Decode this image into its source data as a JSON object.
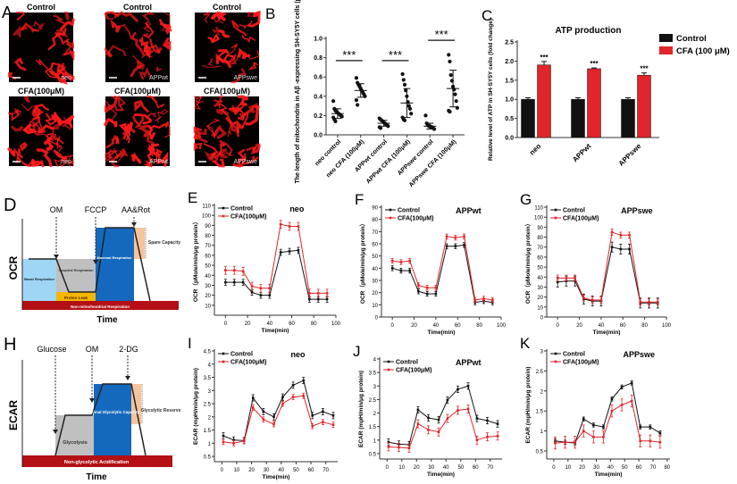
{
  "colors": {
    "control": "#111111",
    "cfa": "#e0262b",
    "basal": "#9fd6f5",
    "coupled": "#c0c0c0",
    "leak": "#f5b800",
    "maximal": "#1469be",
    "spare": "#f6c39a",
    "nonmito": "#b30f14",
    "micro": "#ff1a1a"
  },
  "panel_a": {
    "letter": "A",
    "images": [
      {
        "condition": "Control",
        "cell": "neo"
      },
      {
        "condition": "Control",
        "cell": "APPwt"
      },
      {
        "condition": "Control",
        "cell": "APPswe"
      },
      {
        "condition": "CFA(100μM)",
        "cell": "neo"
      },
      {
        "condition": "CFA(100μM)",
        "cell": "APPwt"
      },
      {
        "condition": "CFA(100μM)",
        "cell": "APPswe"
      }
    ]
  },
  "panel_d": {
    "letter": "D",
    "ylabel": "OCR",
    "xlabel": "Time",
    "injections": [
      "OM",
      "FCCP",
      "AA&Rot"
    ],
    "regions": {
      "basal": "Basal Respiration",
      "coupled": "Coupled Respiration",
      "leak": "Proton Leak",
      "maximal": "Maximal Respiration",
      "spare": "Spare Capacity",
      "nonmito": "Non-mitochondrial Respiration"
    }
  },
  "panel_h": {
    "letter": "H",
    "ylabel": "ECAR",
    "xlabel": "Time",
    "injections": [
      "Glucose",
      "OM",
      "2-DG"
    ],
    "regions": {
      "glycolysis": "Glycolysis",
      "maximal": "Maximal Glycolytic Capacity",
      "reserve": "Glycolytic Reserve",
      "nonglyc": "Non-glycolytic Acidification"
    }
  },
  "chart_data": [
    {
      "id": "B",
      "type": "scatter",
      "letter": "B",
      "ylabel": "The length of mitochondria in Aβ -expressing SH-SY5Y cells (μm)",
      "categories": [
        "neo control",
        "neo CFA (100μM)",
        "APPwt control",
        "APPwt CFA (100μM)",
        "APPswe control",
        "APPswe CFA (100μM)"
      ],
      "ylim": [
        0,
        1.0
      ],
      "yticks": [
        "0.0",
        "0.2",
        "0.4",
        "0.6",
        "0.8",
        "1.0"
      ],
      "means": [
        0.22,
        0.46,
        0.12,
        0.33,
        0.09,
        0.48
      ],
      "sd": [
        0.05,
        0.07,
        0.03,
        0.15,
        0.03,
        0.19
      ],
      "points": [
        [
          0.35,
          0.27,
          0.25,
          0.24,
          0.23,
          0.22,
          0.21,
          0.2,
          0.19,
          0.18,
          0.16,
          0.14
        ],
        [
          0.59,
          0.54,
          0.52,
          0.5,
          0.48,
          0.46,
          0.44,
          0.42,
          0.4,
          0.36,
          0.31
        ],
        [
          0.17,
          0.16,
          0.15,
          0.14,
          0.13,
          0.12,
          0.11,
          0.1,
          0.09,
          0.08,
          0.07
        ],
        [
          0.63,
          0.57,
          0.52,
          0.46,
          0.4,
          0.34,
          0.3,
          0.27,
          0.22,
          0.18,
          0.16,
          0.15
        ],
        [
          0.2,
          0.12,
          0.1,
          0.09,
          0.09,
          0.08,
          0.08,
          0.07,
          0.06
        ],
        [
          0.83,
          0.76,
          0.62,
          0.56,
          0.5,
          0.47,
          0.42,
          0.35,
          0.28,
          0.25,
          0.24
        ]
      ],
      "significance": [
        {
          "pair": [
            0,
            1
          ],
          "y": 0.77,
          "label": "***"
        },
        {
          "pair": [
            2,
            3
          ],
          "y": 0.77,
          "label": "***"
        },
        {
          "pair": [
            4,
            5
          ],
          "y": 0.98,
          "label": "***"
        }
      ]
    },
    {
      "id": "C",
      "type": "bar",
      "letter": "C",
      "title": "ATP production",
      "ylabel": "Relative level of ATP in SH-SY5Y cells (fold change)",
      "categories": [
        "neo",
        "APPwt",
        "APPswe"
      ],
      "ylim": [
        0,
        2.5
      ],
      "yticks": [
        "0.0",
        "0.5",
        "1.0",
        "1.5",
        "2.0",
        "2.5"
      ],
      "series": [
        {
          "name": "Control",
          "values": [
            1.0,
            1.0,
            1.0
          ],
          "err": [
            0.04,
            0.04,
            0.04
          ]
        },
        {
          "name": "CFA (100 μM)",
          "values": [
            1.9,
            1.8,
            1.63
          ],
          "err": [
            0.09,
            0.02,
            0.06
          ],
          "annotations": [
            "***",
            "***",
            "***"
          ]
        }
      ],
      "legend": "top-right"
    },
    {
      "id": "E",
      "type": "line",
      "letter": "E",
      "title": "neo",
      "ylabel": "OCR（pMole/min/μg protein）",
      "xlabel": "Time(min)",
      "x": [
        0,
        8,
        16,
        24,
        32,
        40,
        50,
        58,
        66,
        76,
        84,
        92
      ],
      "xlim": [
        -10,
        100
      ],
      "ylim": [
        0,
        110
      ],
      "xticks": [
        0,
        20,
        40,
        60,
        80,
        100
      ],
      "yticks": [
        10,
        20,
        30,
        40,
        50,
        60,
        70,
        80,
        90,
        100,
        110
      ],
      "series": [
        {
          "name": "Control",
          "values": [
            33,
            33,
            33,
            23,
            20,
            20,
            63,
            64,
            65,
            16,
            16,
            16
          ],
          "err": 3
        },
        {
          "name": "CFA(100μM)",
          "values": [
            45,
            45,
            44,
            29,
            27,
            27,
            91,
            89,
            89,
            22,
            22,
            22
          ],
          "err": 4
        }
      ]
    },
    {
      "id": "F",
      "type": "line",
      "letter": "F",
      "title": "APPwt",
      "ylabel": "OCR（pMole/min/μg protein）",
      "xlabel": "Time(min)",
      "x": [
        0,
        8,
        16,
        24,
        32,
        40,
        50,
        58,
        66,
        76,
        84,
        92
      ],
      "xlim": [
        -10,
        100
      ],
      "ylim": [
        0,
        90
      ],
      "xticks": [
        0,
        20,
        40,
        60,
        80,
        100
      ],
      "yticks": [
        0,
        10,
        20,
        30,
        40,
        50,
        60,
        70,
        80,
        90
      ],
      "series": [
        {
          "name": "Control",
          "values": [
            40,
            38,
            38,
            21,
            19,
            19,
            58,
            58,
            59,
            12,
            13,
            12
          ],
          "err": 2
        },
        {
          "name": "CFA(100μM)",
          "values": [
            46,
            45,
            46,
            26,
            24,
            24,
            66,
            65,
            66,
            14,
            15,
            14
          ],
          "err": 2
        }
      ]
    },
    {
      "id": "G",
      "type": "line",
      "letter": "G",
      "title": "APPswe",
      "ylabel": "OCR（pMole/min/μg protein）",
      "xlabel": "Time(min)",
      "x": [
        0,
        8,
        16,
        24,
        32,
        40,
        50,
        58,
        66,
        76,
        84,
        92
      ],
      "xlim": [
        -10,
        100
      ],
      "ylim": [
        0,
        110
      ],
      "xticks": [
        0,
        20,
        40,
        60,
        80,
        100
      ],
      "yticks": [
        0,
        10,
        20,
        30,
        40,
        50,
        60,
        70,
        80,
        90,
        100,
        110
      ],
      "series": [
        {
          "name": "Control",
          "values": [
            35,
            36,
            36,
            18,
            16,
            16,
            70,
            68,
            68,
            14,
            14,
            14
          ],
          "err": 5
        },
        {
          "name": "CFA(100μM)",
          "values": [
            39,
            39,
            39,
            19,
            17,
            17,
            85,
            82,
            82,
            15,
            15,
            15
          ],
          "err": 3
        }
      ]
    },
    {
      "id": "I",
      "type": "line",
      "letter": "I",
      "title": "neo",
      "ylabel": "ECAR (mpH/min/μg protein)",
      "xlabel": "Time(min)",
      "x": [
        1,
        8,
        15,
        21,
        28,
        35,
        41,
        48,
        55,
        61,
        68,
        75
      ],
      "xlim": [
        -5,
        78
      ],
      "ylim": [
        0.3,
        4.5
      ],
      "xticks": [
        0,
        10,
        20,
        30,
        40,
        50,
        60,
        70
      ],
      "yticks": [
        0.5,
        1.0,
        1.5,
        2.0,
        2.5,
        3.0,
        3.5,
        4.0,
        4.5
      ],
      "series": [
        {
          "name": "Control",
          "values": [
            1.28,
            1.12,
            1.1,
            2.72,
            2.2,
            2.0,
            2.75,
            3.2,
            3.38,
            2.05,
            2.2,
            2.05
          ],
          "err": 0.12
        },
        {
          "name": "CFA(100μM)",
          "values": [
            1.05,
            1.0,
            1.08,
            2.35,
            1.9,
            1.72,
            2.5,
            2.75,
            2.8,
            1.65,
            1.8,
            1.7
          ],
          "err": 0.1
        }
      ]
    },
    {
      "id": "J",
      "type": "line",
      "letter": "J",
      "title": "APPwt",
      "ylabel": "ECAR (mpH/min/μg protein)",
      "xlabel": "Time(min)",
      "x": [
        1,
        8,
        15,
        21,
        28,
        35,
        41,
        48,
        55,
        61,
        68,
        75
      ],
      "xlim": [
        -5,
        78
      ],
      "ylim": [
        0.3,
        4.0
      ],
      "xticks": [
        0,
        10,
        20,
        30,
        40,
        50,
        60,
        70
      ],
      "yticks": [
        0.5,
        1.0,
        1.5,
        2.0,
        2.5,
        3.0,
        3.5,
        4.0
      ],
      "series": [
        {
          "name": "Control",
          "values": [
            0.92,
            0.85,
            0.83,
            2.12,
            1.82,
            1.75,
            2.48,
            2.88,
            3.0,
            1.8,
            1.72,
            1.6
          ],
          "err": 0.12
        },
        {
          "name": "CFA(100μM)",
          "values": [
            0.75,
            0.73,
            0.7,
            1.6,
            1.38,
            1.3,
            1.8,
            2.1,
            2.15,
            1.0,
            1.12,
            1.15
          ],
          "err": 0.15
        }
      ]
    },
    {
      "id": "K",
      "type": "line",
      "letter": "K",
      "title": "APPswe",
      "ylabel": "ECAR (mpH/min/μg protein)",
      "xlabel": "Time(min)",
      "x": [
        1,
        8,
        15,
        21,
        28,
        35,
        41,
        48,
        55,
        61,
        68,
        75
      ],
      "xlim": [
        -5,
        82
      ],
      "ylim": [
        0.3,
        3.0
      ],
      "xticks": [
        0,
        10,
        20,
        30,
        40,
        50,
        60,
        70,
        80
      ],
      "yticks": [
        0.5,
        1.0,
        1.5,
        2.0,
        2.5,
        3.0
      ],
      "series": [
        {
          "name": "Control",
          "values": [
            0.75,
            0.72,
            0.7,
            1.3,
            1.15,
            1.1,
            1.8,
            2.1,
            2.2,
            1.1,
            1.1,
            0.95
          ],
          "err": 0.05
        },
        {
          "name": "CFA(100μM)",
          "values": [
            0.7,
            0.72,
            0.72,
            1.0,
            0.85,
            0.85,
            1.5,
            1.65,
            1.75,
            0.75,
            0.75,
            0.72
          ],
          "err": 0.15
        }
      ]
    }
  ]
}
